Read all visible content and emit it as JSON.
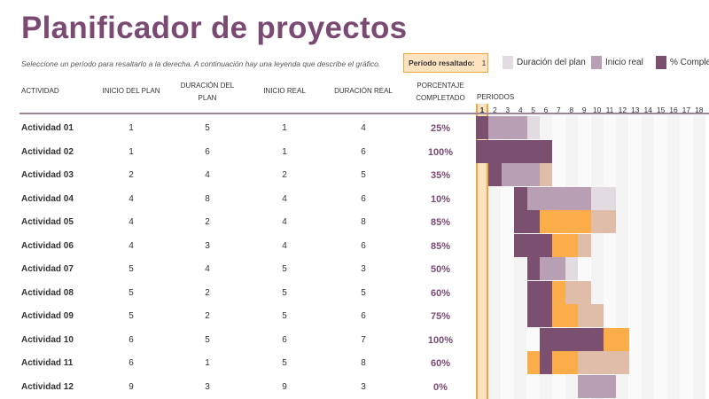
{
  "title": "Planificador de proyectos",
  "subtitle": "Seleccione un período para resaltarlo a la derecha.  A continuación hay una leyenda que describe el gráfico.",
  "highlight": {
    "label": "Período resaltado:",
    "value": "1"
  },
  "legend": [
    {
      "label": "Duración del plan",
      "color": "#e2dbe2"
    },
    {
      "label": "Inicio real",
      "color": "#b89fb4"
    },
    {
      "label": "% Comple",
      "color": "#7b4f70"
    }
  ],
  "headers": {
    "activity": "ACTIVIDAD",
    "plan_start": "INICIO DEL PLAN",
    "plan_duration": "DURACIÓN DEL PLAN",
    "actual_start": "INICIO REAL",
    "actual_duration": "DURACIÓN REAL",
    "percent": "PORCENTAJE COMPLETADO",
    "periods": "PERIODOS"
  },
  "periods": [
    "1",
    "2",
    "3",
    "4",
    "5",
    "6",
    "7",
    "8",
    "9",
    "10",
    "11",
    "12",
    "13",
    "14",
    "15",
    "16",
    "17",
    "18"
  ],
  "colors": {
    "dark": "#7b4f70",
    "mid": "#b89fb4",
    "light": "#e2dbe2",
    "orange": "#fbad4a",
    "tan": "#e0bda8",
    "title": "#7a4a73"
  },
  "rows": [
    {
      "name": "Actividad 01",
      "plan_start": "1",
      "plan_duration": "5",
      "actual_start": "1",
      "actual_duration": "4",
      "percent": "25%",
      "bars": [
        [
          1,
          1,
          "dark"
        ],
        [
          2,
          4,
          "mid"
        ],
        [
          5,
          5,
          "light"
        ]
      ]
    },
    {
      "name": "Actividad 02",
      "plan_start": "1",
      "plan_duration": "6",
      "actual_start": "1",
      "actual_duration": "6",
      "percent": "100%",
      "bars": [
        [
          1,
          6,
          "dark"
        ]
      ]
    },
    {
      "name": "Actividad 03",
      "plan_start": "2",
      "plan_duration": "4",
      "actual_start": "2",
      "actual_duration": "5",
      "percent": "35%",
      "bars": [
        [
          2,
          2,
          "dark"
        ],
        [
          3,
          5,
          "mid"
        ],
        [
          6,
          6,
          "tan"
        ]
      ]
    },
    {
      "name": "Actividad 04",
      "plan_start": "4",
      "plan_duration": "8",
      "actual_start": "4",
      "actual_duration": "6",
      "percent": "10%",
      "bars": [
        [
          4,
          4,
          "dark"
        ],
        [
          5,
          9,
          "mid"
        ],
        [
          10,
          11,
          "light"
        ]
      ]
    },
    {
      "name": "Actividad 05",
      "plan_start": "4",
      "plan_duration": "2",
      "actual_start": "4",
      "actual_duration": "8",
      "percent": "85%",
      "bars": [
        [
          4,
          5,
          "dark"
        ],
        [
          6,
          9,
          "orange"
        ],
        [
          10,
          11,
          "tan"
        ]
      ]
    },
    {
      "name": "Actividad 06",
      "plan_start": "4",
      "plan_duration": "3",
      "actual_start": "4",
      "actual_duration": "6",
      "percent": "85%",
      "bars": [
        [
          4,
          6,
          "dark"
        ],
        [
          7,
          8,
          "orange"
        ],
        [
          9,
          9,
          "tan"
        ]
      ]
    },
    {
      "name": "Actividad 07",
      "plan_start": "5",
      "plan_duration": "4",
      "actual_start": "5",
      "actual_duration": "3",
      "percent": "50%",
      "bars": [
        [
          5,
          5,
          "dark"
        ],
        [
          6,
          7,
          "mid"
        ],
        [
          8,
          8,
          "light"
        ]
      ]
    },
    {
      "name": "Actividad 08",
      "plan_start": "5",
      "plan_duration": "2",
      "actual_start": "5",
      "actual_duration": "5",
      "percent": "60%",
      "bars": [
        [
          5,
          6,
          "dark"
        ],
        [
          7,
          7,
          "orange"
        ],
        [
          8,
          9,
          "tan"
        ]
      ]
    },
    {
      "name": "Actividad 09",
      "plan_start": "5",
      "plan_duration": "2",
      "actual_start": "5",
      "actual_duration": "6",
      "percent": "75%",
      "bars": [
        [
          5,
          6,
          "dark"
        ],
        [
          7,
          8,
          "orange"
        ],
        [
          9,
          10,
          "tan"
        ]
      ]
    },
    {
      "name": "Actividad 10",
      "plan_start": "6",
      "plan_duration": "5",
      "actual_start": "6",
      "actual_duration": "7",
      "percent": "100%",
      "bars": [
        [
          6,
          10,
          "dark"
        ],
        [
          11,
          12,
          "orange"
        ]
      ]
    },
    {
      "name": "Actividad 11",
      "plan_start": "6",
      "plan_duration": "1",
      "actual_start": "5",
      "actual_duration": "8",
      "percent": "60%",
      "bars": [
        [
          5,
          5,
          "orange"
        ],
        [
          6,
          6,
          "dark"
        ],
        [
          7,
          8,
          "orange"
        ],
        [
          9,
          12,
          "tan"
        ]
      ]
    },
    {
      "name": "Actividad 12",
      "plan_start": "9",
      "plan_duration": "3",
      "actual_start": "9",
      "actual_duration": "3",
      "percent": "0%",
      "bars": [
        [
          9,
          11,
          "mid"
        ]
      ]
    }
  ]
}
